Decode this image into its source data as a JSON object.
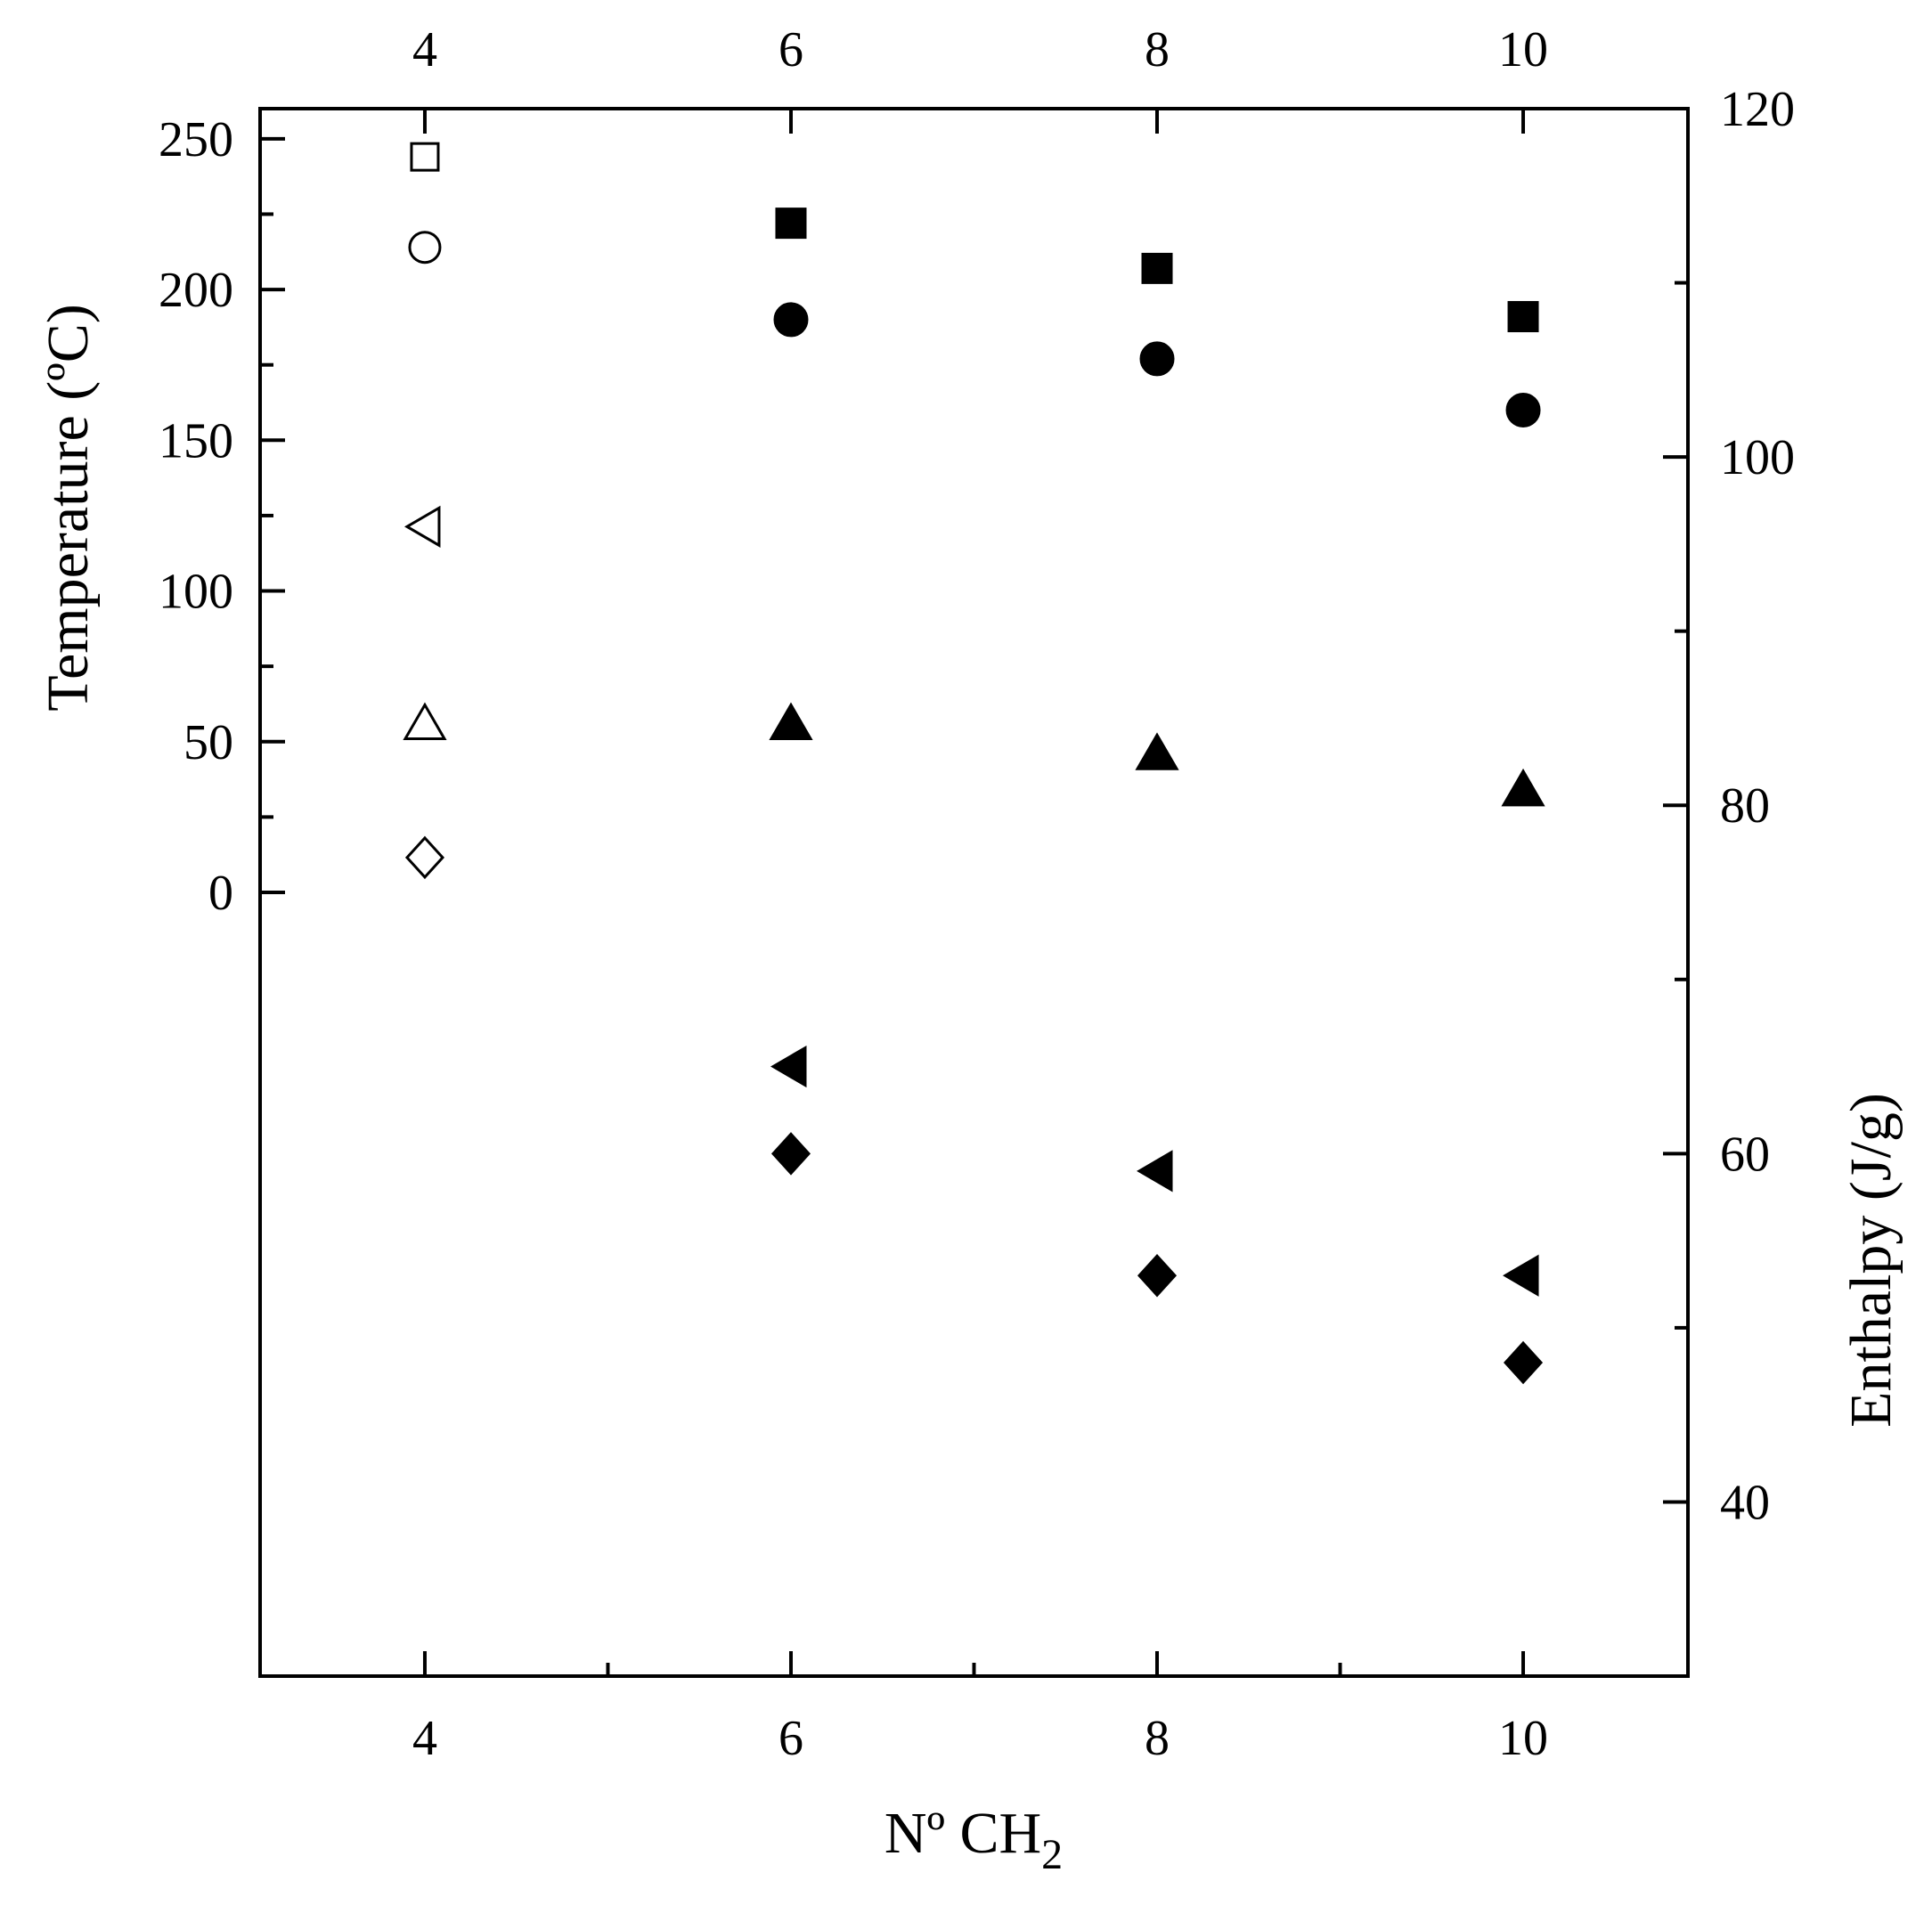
{
  "chart_data": {
    "type": "scatter",
    "xlabel": "Nº CH",
    "xlabel_subscript": "2",
    "ylabel_left": "Temperature (ºC)",
    "ylabel_right": "Enthalpy (J/g)",
    "x_ticks": [
      4,
      6,
      8,
      10
    ],
    "xlim": [
      3.1,
      10.9
    ],
    "ylim_left": [
      -260,
      260
    ],
    "y_ticks_left": [
      0,
      50,
      100,
      150,
      200,
      250
    ],
    "y_minor_ticks_left": [
      25,
      75,
      125,
      175,
      225
    ],
    "ylim_right": [
      30,
      120
    ],
    "y_ticks_right": [
      40,
      60,
      80,
      100,
      120
    ],
    "y_minor_ticks_right": [
      50,
      70,
      90,
      110
    ],
    "colors": {
      "axis": "#000000",
      "marker": "#000000",
      "hollow_fill": "#ffffff"
    },
    "series": [
      {
        "axis": "left",
        "marker": "square",
        "filled": false,
        "x": [
          4
        ],
        "y": [
          244
        ]
      },
      {
        "axis": "left",
        "marker": "square",
        "filled": true,
        "x": [
          6,
          8,
          10
        ],
        "y": [
          222,
          207,
          191
        ]
      },
      {
        "axis": "left",
        "marker": "circle",
        "filled": false,
        "x": [
          4
        ],
        "y": [
          214
        ]
      },
      {
        "axis": "left",
        "marker": "circle",
        "filled": true,
        "x": [
          6,
          8,
          10
        ],
        "y": [
          190,
          177,
          160
        ]
      },
      {
        "axis": "left",
        "marker": "triangle-up",
        "filled": false,
        "x": [
          4
        ],
        "y": [
          56
        ]
      },
      {
        "axis": "left",
        "marker": "triangle-up",
        "filled": true,
        "x": [
          6,
          8,
          10
        ],
        "y": [
          56,
          46,
          34
        ]
      },
      {
        "axis": "right",
        "marker": "triangle-left",
        "filled": false,
        "x": [
          4
        ],
        "y": [
          96
        ]
      },
      {
        "axis": "right",
        "marker": "triangle-left",
        "filled": true,
        "x": [
          6,
          8,
          10
        ],
        "y": [
          65,
          59,
          53
        ]
      },
      {
        "axis": "right",
        "marker": "diamond",
        "filled": false,
        "x": [
          4
        ],
        "y": [
          77
        ]
      },
      {
        "axis": "right",
        "marker": "diamond",
        "filled": true,
        "x": [
          6,
          8,
          10
        ],
        "y": [
          60,
          53,
          48
        ]
      }
    ]
  }
}
